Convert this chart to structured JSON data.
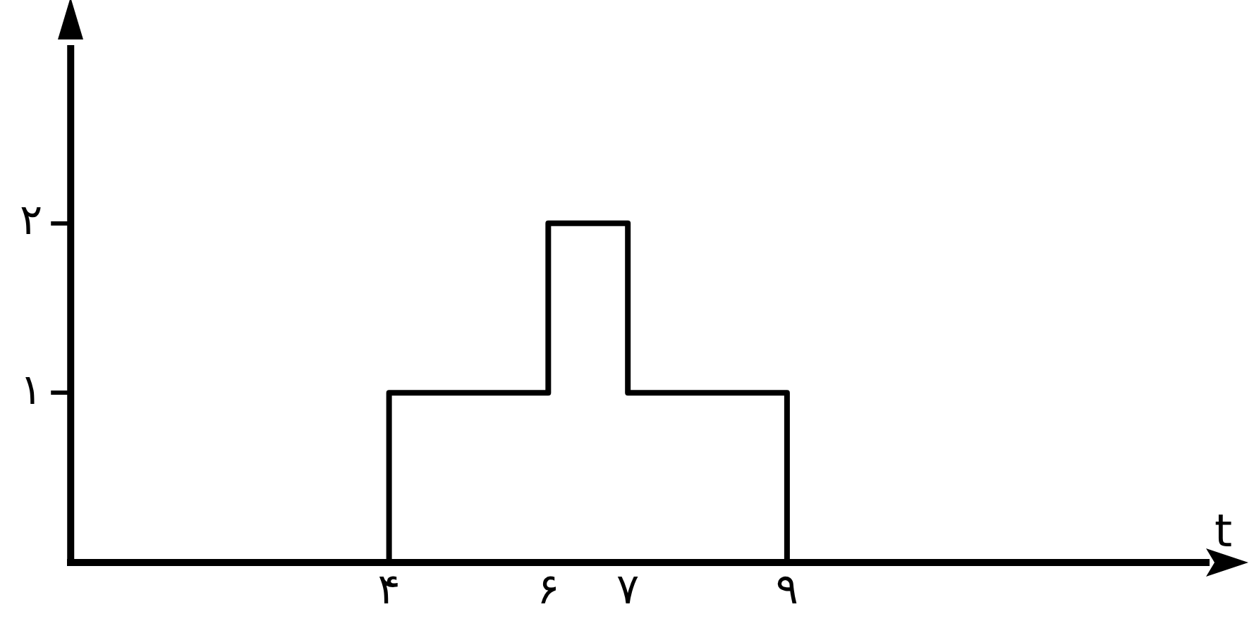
{
  "chart_data": {
    "type": "step",
    "xlabel": "t",
    "x": [
      0,
      4,
      6,
      7,
      9
    ],
    "series": [
      {
        "color": "#000000",
        "values": [
          0,
          1,
          2,
          1,
          0
        ]
      }
    ],
    "xlim": [
      0,
      14.3
    ],
    "ylim": [
      0,
      3.05
    ],
    "xticks": [
      {
        "value": 4,
        "label": "۴"
      },
      {
        "value": 6,
        "label": "۶"
      },
      {
        "value": 7,
        "label": "۷"
      },
      {
        "value": 9,
        "label": "۹"
      }
    ],
    "yticks": [
      {
        "value": 1,
        "label": "۱"
      },
      {
        "value": 2,
        "label": "۲"
      }
    ],
    "grid": false,
    "legend": false,
    "marker": "none",
    "line_style": "solid"
  }
}
